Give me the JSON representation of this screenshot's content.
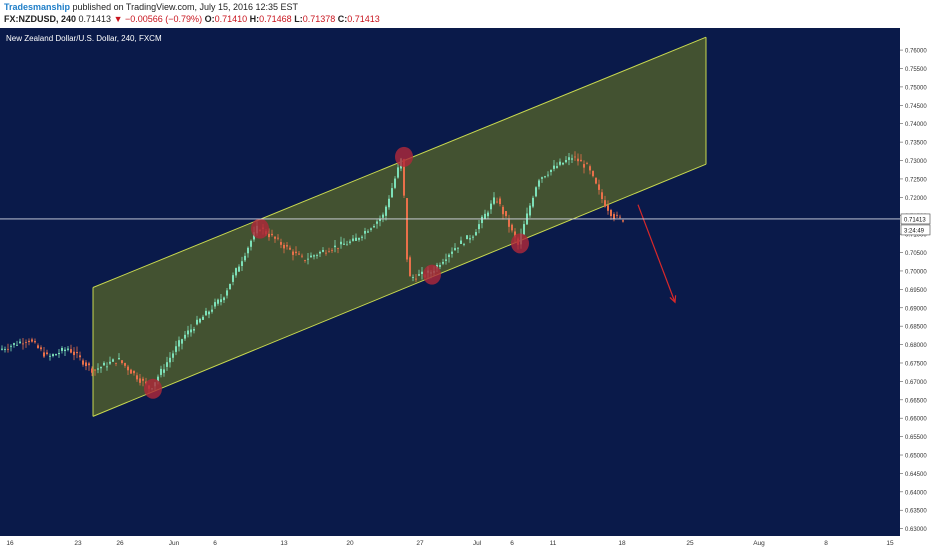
{
  "header": {
    "author": "Tradesmanship",
    "published_text": "published on TradingView.com, July 15, 2016 12:35 EST",
    "symbol": "FX:NZDUSD, 240",
    "last_price": "0.71413",
    "change": "▼ −0.00566 (−0.79%)",
    "o_label": "O:",
    "o_value": "0.71410",
    "h_label": "H:",
    "h_value": "0.71468",
    "l_label": "L:",
    "l_value": "0.71378",
    "c_label": "C:",
    "c_value": "0.71413"
  },
  "colors": {
    "background": "#0a1a4a",
    "channel_fill": "#4b5a2e",
    "channel_line": "#c8d850",
    "candle_up": "#7de0b8",
    "candle_down": "#e8704a",
    "marker": "#b0283a",
    "arrow": "#d8282a"
  },
  "chart_data": {
    "type": "candlestick",
    "title": "New Zealand Dollar/U.S. Dollar, 240, FXCM",
    "current_price": 0.71413,
    "current_price_label": "0.71413",
    "countdown_label": "3:24:49",
    "ylim": [
      0.628,
      0.766
    ],
    "y_ticks": [
      "0.76000",
      "0.75500",
      "0.75000",
      "0.74500",
      "0.74000",
      "0.73500",
      "0.73000",
      "0.72500",
      "0.72000",
      "0.71500",
      "0.71000",
      "0.70500",
      "0.70000",
      "0.69500",
      "0.69000",
      "0.68500",
      "0.68000",
      "0.67500",
      "0.67000",
      "0.66500",
      "0.66000",
      "0.65500",
      "0.65000",
      "0.64500",
      "0.64000",
      "0.63500",
      "0.63000"
    ],
    "x_ticks": [
      "16",
      "23",
      "26",
      "Jun",
      "6",
      "13",
      "20",
      "27",
      "Jul",
      "6",
      "11",
      "18",
      "25",
      "Aug",
      "8",
      "15"
    ],
    "price_path": [
      {
        "x": 0,
        "y": 0.6785
      },
      {
        "x": 30,
        "y": 0.6815
      },
      {
        "x": 50,
        "y": 0.6765
      },
      {
        "x": 70,
        "y": 0.679
      },
      {
        "x": 95,
        "y": 0.673
      },
      {
        "x": 120,
        "y": 0.676
      },
      {
        "x": 152,
        "y": 0.668
      },
      {
        "x": 185,
        "y": 0.682
      },
      {
        "x": 225,
        "y": 0.693
      },
      {
        "x": 260,
        "y": 0.712
      },
      {
        "x": 305,
        "y": 0.703
      },
      {
        "x": 330,
        "y": 0.706
      },
      {
        "x": 355,
        "y": 0.708
      },
      {
        "x": 385,
        "y": 0.715
      },
      {
        "x": 404,
        "y": 0.731
      },
      {
        "x": 410,
        "y": 0.698
      },
      {
        "x": 432,
        "y": 0.6995
      },
      {
        "x": 455,
        "y": 0.706
      },
      {
        "x": 475,
        "y": 0.71
      },
      {
        "x": 498,
        "y": 0.72
      },
      {
        "x": 520,
        "y": 0.707
      },
      {
        "x": 540,
        "y": 0.725
      },
      {
        "x": 556,
        "y": 0.728
      },
      {
        "x": 575,
        "y": 0.731
      },
      {
        "x": 590,
        "y": 0.728
      },
      {
        "x": 605,
        "y": 0.719
      },
      {
        "x": 615,
        "y": 0.715
      },
      {
        "x": 622,
        "y": 0.7141
      }
    ],
    "channel": {
      "upper": [
        {
          "x": 93,
          "y": 0.6955
        },
        {
          "x": 706,
          "y": 0.7635
        }
      ],
      "lower": [
        {
          "x": 93,
          "y": 0.6605
        },
        {
          "x": 706,
          "y": 0.729
        }
      ]
    },
    "markers": [
      {
        "x": 153,
        "y": 0.668
      },
      {
        "x": 260,
        "y": 0.7115
      },
      {
        "x": 404,
        "y": 0.731
      },
      {
        "x": 432,
        "y": 0.699
      },
      {
        "x": 520,
        "y": 0.7075
      }
    ],
    "arrow": {
      "from": {
        "x": 638,
        "y": 0.718
      },
      "to": {
        "x": 675,
        "y": 0.6915
      }
    },
    "grid": false
  }
}
